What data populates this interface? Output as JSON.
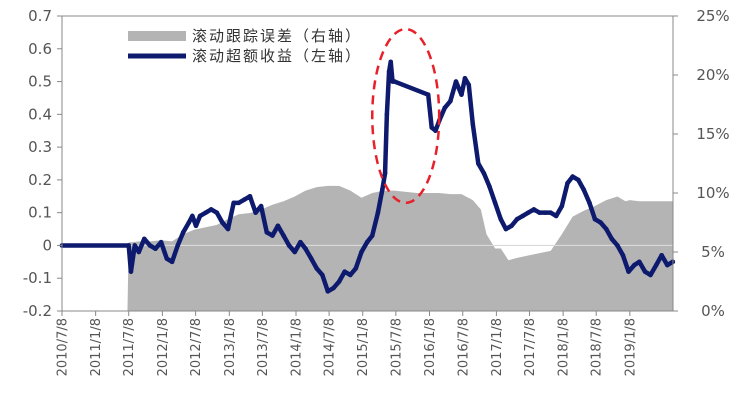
{
  "chart_data": {
    "type": "line",
    "title": "",
    "legend_position": "top-center",
    "x": [
      "2010/7/8",
      "2011/1/8",
      "2011/7/8",
      "2012/1/8",
      "2012/7/8",
      "2013/1/8",
      "2013/7/8",
      "2014/1/8",
      "2014/7/8",
      "2015/1/8",
      "2015/7/8",
      "2016/1/8",
      "2016/7/8",
      "2017/1/8",
      "2017/7/8",
      "2018/1/8",
      "2018/7/8",
      "2019/1/8"
    ],
    "x_range": [
      "2010/7/8",
      "2019/9/1"
    ],
    "y_left": {
      "range": [
        -0.2,
        0.7
      ],
      "ticks": [
        "0.7",
        "0.6",
        "0.5",
        "0.4",
        "0.3",
        "0.2",
        "0.1",
        "0",
        "-0.1",
        "-0.2"
      ]
    },
    "y_right": {
      "range": [
        0,
        25
      ],
      "ticks": [
        "25%",
        "20%",
        "15%",
        "10%",
        "5%",
        "0%"
      ]
    },
    "series": [
      {
        "name": "滚动跟踪误差（右轴）",
        "type": "area",
        "axis": "right",
        "color": "#b4b4b4",
        "points": [
          [
            "2011/7/1",
            0
          ],
          [
            "2011/7/8",
            5.8
          ],
          [
            "2011/9/1",
            5.9
          ],
          [
            "2011/11/1",
            5.9
          ],
          [
            "2012/1/1",
            6.0
          ],
          [
            "2012/3/1",
            5.9
          ],
          [
            "2012/5/1",
            6.5
          ],
          [
            "2012/7/1",
            6.9
          ],
          [
            "2012/9/1",
            7.1
          ],
          [
            "2012/11/1",
            7.3
          ],
          [
            "2013/1/1",
            7.8
          ],
          [
            "2013/3/1",
            8.2
          ],
          [
            "2013/5/1",
            8.3
          ],
          [
            "2013/7/1",
            8.6
          ],
          [
            "2013/9/1",
            9.0
          ],
          [
            "2013/11/1",
            9.3
          ],
          [
            "2014/1/1",
            9.7
          ],
          [
            "2014/3/1",
            10.2
          ],
          [
            "2014/5/1",
            10.5
          ],
          [
            "2014/7/1",
            10.6
          ],
          [
            "2014/9/1",
            10.6
          ],
          [
            "2014/11/1",
            10.2
          ],
          [
            "2015/1/1",
            9.6
          ],
          [
            "2015/3/1",
            10.0
          ],
          [
            "2015/5/1",
            10.2
          ],
          [
            "2015/7/1",
            10.2
          ],
          [
            "2015/9/1",
            10.1
          ],
          [
            "2015/11/1",
            10.0
          ],
          [
            "2016/1/1",
            10.0
          ],
          [
            "2016/3/1",
            10.0
          ],
          [
            "2016/5/1",
            9.9
          ],
          [
            "2016/7/1",
            9.9
          ],
          [
            "2016/9/1",
            9.4
          ],
          [
            "2016/10/15",
            8.6
          ],
          [
            "2016/11/15",
            6.5
          ],
          [
            "2017/1/1",
            5.3
          ],
          [
            "2017/2/1",
            5.3
          ],
          [
            "2017/3/15",
            4.3
          ],
          [
            "2017/5/1",
            4.5
          ],
          [
            "2017/7/1",
            4.7
          ],
          [
            "2017/9/1",
            4.9
          ],
          [
            "2017/11/1",
            5.1
          ],
          [
            "2018/1/1",
            6.5
          ],
          [
            "2018/3/1",
            8.0
          ],
          [
            "2018/5/1",
            8.5
          ],
          [
            "2018/7/1",
            8.9
          ],
          [
            "2018/9/1",
            9.4
          ],
          [
            "2018/11/1",
            9.7
          ],
          [
            "2018/12/15",
            9.3
          ],
          [
            "2019/1/8",
            9.4
          ],
          [
            "2019/3/1",
            9.3
          ],
          [
            "2019/5/1",
            9.3
          ],
          [
            "2019/7/1",
            9.3
          ],
          [
            "2019/8/31",
            9.3
          ],
          [
            "2019/8/31",
            0
          ]
        ]
      },
      {
        "name": "滚动超额收益（左轴）",
        "type": "line",
        "axis": "left",
        "color": "#0d1a6e",
        "points": [
          [
            "2010/7/8",
            0
          ],
          [
            "2011/7/8",
            0
          ],
          [
            "2011/7/20",
            -0.08
          ],
          [
            "2011/8/10",
            0
          ],
          [
            "2011/9/1",
            -0.02
          ],
          [
            "2011/10/1",
            0.02
          ],
          [
            "2011/11/1",
            0.0
          ],
          [
            "2011/12/1",
            -0.01
          ],
          [
            "2012/1/1",
            0.01
          ],
          [
            "2012/2/1",
            -0.04
          ],
          [
            "2012/3/1",
            -0.05
          ],
          [
            "2012/4/1",
            0.0
          ],
          [
            "2012/5/1",
            0.04
          ],
          [
            "2012/6/1",
            0.07
          ],
          [
            "2012/6/20",
            0.09
          ],
          [
            "2012/7/10",
            0.06
          ],
          [
            "2012/8/1",
            0.09
          ],
          [
            "2012/9/1",
            0.1
          ],
          [
            "2012/10/1",
            0.11
          ],
          [
            "2012/11/1",
            0.1
          ],
          [
            "2012/12/1",
            0.07
          ],
          [
            "2013/1/1",
            0.05
          ],
          [
            "2013/2/1",
            0.13
          ],
          [
            "2013/3/1",
            0.13
          ],
          [
            "2013/4/1",
            0.14
          ],
          [
            "2013/5/1",
            0.15
          ],
          [
            "2013/6/1",
            0.1
          ],
          [
            "2013/7/1",
            0.12
          ],
          [
            "2013/8/1",
            0.04
          ],
          [
            "2013/9/1",
            0.03
          ],
          [
            "2013/10/1",
            0.06
          ],
          [
            "2013/11/1",
            0.03
          ],
          [
            "2013/12/1",
            0.0
          ],
          [
            "2014/1/1",
            -0.02
          ],
          [
            "2014/2/1",
            0.01
          ],
          [
            "2014/3/1",
            -0.01
          ],
          [
            "2014/4/1",
            -0.04
          ],
          [
            "2014/5/1",
            -0.07
          ],
          [
            "2014/6/1",
            -0.09
          ],
          [
            "2014/7/1",
            -0.14
          ],
          [
            "2014/8/1",
            -0.13
          ],
          [
            "2014/9/1",
            -0.11
          ],
          [
            "2014/10/1",
            -0.08
          ],
          [
            "2014/11/1",
            -0.09
          ],
          [
            "2014/12/1",
            -0.07
          ],
          [
            "2015/1/1",
            -0.02
          ],
          [
            "2015/2/1",
            0.01
          ],
          [
            "2015/3/1",
            0.03
          ],
          [
            "2015/4/1",
            0.1
          ],
          [
            "2015/4/25",
            0.17
          ],
          [
            "2015/5/10",
            0.22
          ],
          [
            "2015/5/20",
            0.4
          ],
          [
            "2015/6/1",
            0.53
          ],
          [
            "2015/6/10",
            0.56
          ],
          [
            "2015/6/20",
            0.5
          ],
          [
            "2015/7/1",
            0.5
          ],
          [
            "2016/1/1",
            0.46
          ],
          [
            "2016/1/20",
            0.36
          ],
          [
            "2016/2/10",
            0.35
          ],
          [
            "2016/3/1",
            0.38
          ],
          [
            "2016/4/1",
            0.42
          ],
          [
            "2016/5/1",
            0.44
          ],
          [
            "2016/6/1",
            0.5
          ],
          [
            "2016/7/1",
            0.46
          ],
          [
            "2016/7/20",
            0.51
          ],
          [
            "2016/8/10",
            0.49
          ],
          [
            "2016/9/1",
            0.37
          ],
          [
            "2016/10/1",
            0.25
          ],
          [
            "2016/11/1",
            0.22
          ],
          [
            "2016/12/1",
            0.18
          ],
          [
            "2017/1/1",
            0.13
          ],
          [
            "2017/2/1",
            0.08
          ],
          [
            "2017/3/1",
            0.05
          ],
          [
            "2017/4/1",
            0.06
          ],
          [
            "2017/5/1",
            0.08
          ],
          [
            "2017/6/1",
            0.09
          ],
          [
            "2017/7/1",
            0.1
          ],
          [
            "2017/8/1",
            0.11
          ],
          [
            "2017/9/1",
            0.1
          ],
          [
            "2017/10/1",
            0.1
          ],
          [
            "2017/11/1",
            0.1
          ],
          [
            "2017/12/1",
            0.09
          ],
          [
            "2018/1/1",
            0.12
          ],
          [
            "2018/2/1",
            0.19
          ],
          [
            "2018/3/1",
            0.21
          ],
          [
            "2018/4/1",
            0.2
          ],
          [
            "2018/5/1",
            0.17
          ],
          [
            "2018/6/1",
            0.13
          ],
          [
            "2018/7/1",
            0.08
          ],
          [
            "2018/8/1",
            0.07
          ],
          [
            "2018/9/1",
            0.05
          ],
          [
            "2018/10/1",
            0.02
          ],
          [
            "2018/11/1",
            0.0
          ],
          [
            "2018/12/1",
            -0.03
          ],
          [
            "2019/1/1",
            -0.08
          ],
          [
            "2019/2/1",
            -0.06
          ],
          [
            "2019/3/1",
            -0.05
          ],
          [
            "2019/4/1",
            -0.08
          ],
          [
            "2019/5/1",
            -0.09
          ],
          [
            "2019/6/1",
            -0.06
          ],
          [
            "2019/7/1",
            -0.03
          ],
          [
            "2019/8/1",
            -0.06
          ],
          [
            "2019/8/31",
            -0.05
          ]
        ]
      }
    ],
    "annotations": [
      {
        "type": "ellipse",
        "style": "dashed",
        "color": "#e8202a",
        "x_range": [
          "2015/3/1",
          "2016/3/1"
        ],
        "y_range": [
          0.13,
          0.66
        ]
      }
    ]
  }
}
